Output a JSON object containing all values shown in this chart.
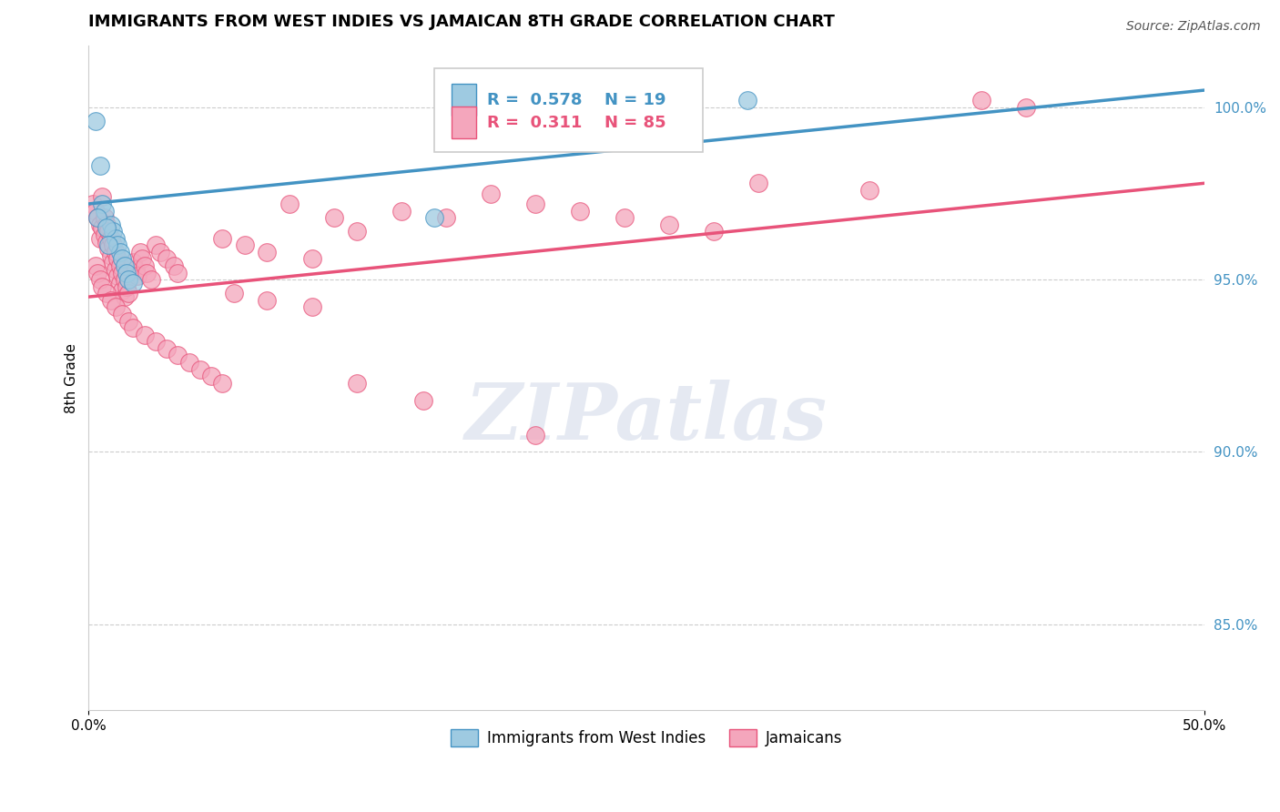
{
  "title": "IMMIGRANTS FROM WEST INDIES VS JAMAICAN 8TH GRADE CORRELATION CHART",
  "source_text": "Source: ZipAtlas.com",
  "ylabel": "8th Grade",
  "xlim": [
    0.0,
    50.0
  ],
  "ylim": [
    82.5,
    101.8
  ],
  "yticks": [
    85.0,
    90.0,
    95.0,
    100.0
  ],
  "ytick_labels": [
    "85.0%",
    "90.0%",
    "95.0%",
    "100.0%"
  ],
  "xticks": [
    0.0,
    50.0
  ],
  "xtick_labels": [
    "0.0%",
    "50.0%"
  ],
  "legend_r_blue": "R =  0.578",
  "legend_n_blue": "N = 19",
  "legend_r_pink": "R =  0.311",
  "legend_n_pink": "N = 85",
  "legend_label_blue": "Immigrants from West Indies",
  "legend_label_pink": "Jamaicans",
  "watermark": "ZIPatlas",
  "blue_scatter": [
    [
      0.3,
      99.6
    ],
    [
      0.5,
      98.3
    ],
    [
      0.6,
      97.2
    ],
    [
      0.7,
      97.0
    ],
    [
      1.0,
      96.6
    ],
    [
      1.1,
      96.4
    ],
    [
      1.2,
      96.2
    ],
    [
      1.3,
      96.0
    ],
    [
      1.4,
      95.8
    ],
    [
      1.5,
      95.6
    ],
    [
      1.6,
      95.4
    ],
    [
      1.7,
      95.2
    ],
    [
      1.8,
      95.0
    ],
    [
      2.0,
      94.9
    ],
    [
      0.4,
      96.8
    ],
    [
      0.8,
      96.5
    ],
    [
      0.9,
      96.0
    ],
    [
      15.5,
      96.8
    ],
    [
      29.5,
      100.2
    ]
  ],
  "pink_scatter": [
    [
      0.2,
      97.2
    ],
    [
      0.3,
      97.0
    ],
    [
      0.4,
      96.8
    ],
    [
      0.5,
      96.6
    ],
    [
      0.5,
      96.2
    ],
    [
      0.6,
      97.4
    ],
    [
      0.6,
      96.5
    ],
    [
      0.7,
      96.8
    ],
    [
      0.7,
      96.3
    ],
    [
      0.8,
      96.6
    ],
    [
      0.8,
      96.1
    ],
    [
      0.9,
      96.4
    ],
    [
      0.9,
      95.9
    ],
    [
      1.0,
      96.2
    ],
    [
      1.0,
      95.7
    ],
    [
      1.1,
      96.0
    ],
    [
      1.1,
      95.5
    ],
    [
      1.2,
      95.8
    ],
    [
      1.2,
      95.3
    ],
    [
      1.3,
      95.6
    ],
    [
      1.3,
      95.1
    ],
    [
      1.4,
      95.4
    ],
    [
      1.4,
      94.9
    ],
    [
      1.5,
      95.2
    ],
    [
      1.5,
      94.7
    ],
    [
      1.6,
      95.0
    ],
    [
      1.6,
      94.5
    ],
    [
      1.7,
      94.8
    ],
    [
      1.8,
      94.6
    ],
    [
      2.0,
      95.5
    ],
    [
      2.1,
      95.3
    ],
    [
      2.2,
      95.1
    ],
    [
      2.3,
      95.8
    ],
    [
      2.4,
      95.6
    ],
    [
      2.5,
      95.4
    ],
    [
      2.6,
      95.2
    ],
    [
      2.8,
      95.0
    ],
    [
      3.0,
      96.0
    ],
    [
      3.2,
      95.8
    ],
    [
      3.5,
      95.6
    ],
    [
      3.8,
      95.4
    ],
    [
      4.0,
      95.2
    ],
    [
      0.3,
      95.4
    ],
    [
      0.4,
      95.2
    ],
    [
      0.5,
      95.0
    ],
    [
      0.6,
      94.8
    ],
    [
      0.8,
      94.6
    ],
    [
      1.0,
      94.4
    ],
    [
      1.2,
      94.2
    ],
    [
      1.5,
      94.0
    ],
    [
      1.8,
      93.8
    ],
    [
      2.0,
      93.6
    ],
    [
      2.5,
      93.4
    ],
    [
      3.0,
      93.2
    ],
    [
      3.5,
      93.0
    ],
    [
      4.0,
      92.8
    ],
    [
      4.5,
      92.6
    ],
    [
      5.0,
      92.4
    ],
    [
      5.5,
      92.2
    ],
    [
      6.0,
      92.0
    ],
    [
      6.0,
      96.2
    ],
    [
      7.0,
      96.0
    ],
    [
      8.0,
      95.8
    ],
    [
      9.0,
      97.2
    ],
    [
      10.0,
      95.6
    ],
    [
      11.0,
      96.8
    ],
    [
      12.0,
      96.4
    ],
    [
      14.0,
      97.0
    ],
    [
      16.0,
      96.8
    ],
    [
      18.0,
      97.5
    ],
    [
      20.0,
      97.2
    ],
    [
      22.0,
      97.0
    ],
    [
      24.0,
      96.8
    ],
    [
      26.0,
      96.6
    ],
    [
      28.0,
      96.4
    ],
    [
      30.0,
      97.8
    ],
    [
      35.0,
      97.6
    ],
    [
      40.0,
      100.2
    ],
    [
      42.0,
      100.0
    ],
    [
      6.5,
      94.6
    ],
    [
      8.0,
      94.4
    ],
    [
      10.0,
      94.2
    ],
    [
      12.0,
      92.0
    ],
    [
      15.0,
      91.5
    ],
    [
      20.0,
      90.5
    ]
  ],
  "blue_line_x": [
    0.0,
    50.0
  ],
  "blue_line_y": [
    97.2,
    100.5
  ],
  "pink_line_x": [
    0.0,
    50.0
  ],
  "pink_line_y": [
    94.5,
    97.8
  ],
  "blue_color": "#4393c3",
  "pink_color": "#e8537a",
  "blue_scatter_color": "#9ecae1",
  "pink_scatter_color": "#f4a6bc",
  "grid_color": "#cccccc",
  "background_color": "#ffffff",
  "title_fontsize": 13,
  "tick_fontsize": 11,
  "ytick_color": "#4393c3"
}
